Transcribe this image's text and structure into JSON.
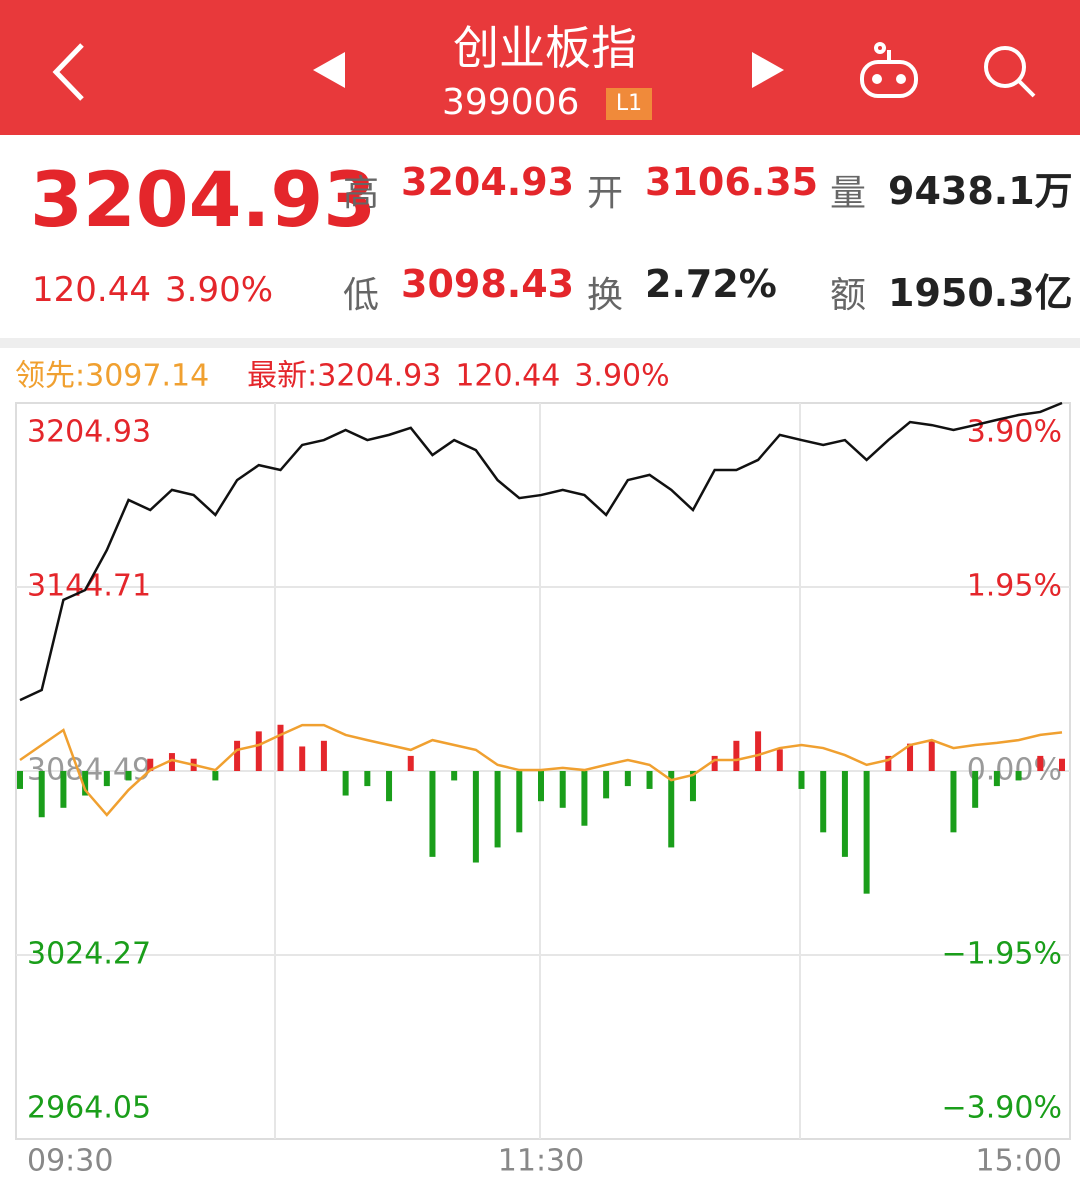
{
  "header": {
    "title": "创业板指",
    "code": "399006",
    "level": "L1"
  },
  "quote": {
    "price": "3204.93",
    "change": "120.44",
    "change_pct": "3.90%",
    "stats": [
      {
        "label": "高",
        "value": "3204.93",
        "color": "#e4262b"
      },
      {
        "label": "开",
        "value": "3106.35",
        "color": "#e4262b"
      },
      {
        "label": "量",
        "value": "9438.1万",
        "color": "#222222"
      },
      {
        "label": "低",
        "value": "3098.43",
        "color": "#e4262b"
      },
      {
        "label": "换",
        "value": "2.72%",
        "color": "#222222"
      },
      {
        "label": "额",
        "value": "1950.3亿",
        "color": "#222222"
      }
    ]
  },
  "chart_data": {
    "type": "line",
    "categories": [
      "09:30",
      null,
      null,
      null,
      null,
      null,
      null,
      null,
      null,
      null,
      null,
      null,
      null,
      null,
      null,
      null,
      null,
      null,
      null,
      null,
      null,
      null,
      null,
      null,
      "11:30",
      null,
      null,
      null,
      null,
      null,
      null,
      null,
      null,
      null,
      null,
      null,
      null,
      null,
      null,
      null,
      null,
      null,
      null,
      null,
      null,
      null,
      null,
      null,
      "15:00"
    ],
    "latest_change": "120.44",
    "latest_change_pct": "3.90%",
    "series": [
      {
        "name": "最新:3204.93",
        "type": "line",
        "color": "#111111",
        "legend_color": "#e4262b",
        "values": [
          3107.7,
          3111.0,
          3140.5,
          3143.7,
          3156.8,
          3173.2,
          3169.9,
          3176.5,
          3174.8,
          3168.3,
          3179.7,
          3184.6,
          3183.0,
          3191.2,
          3192.8,
          3196.1,
          3192.8,
          3194.5,
          3196.8,
          3187.9,
          3192.8,
          3189.5,
          3179.7,
          3173.8,
          3174.8,
          3176.5,
          3174.8,
          3168.3,
          3179.7,
          3181.4,
          3176.5,
          3169.9,
          3183.0,
          3183.0,
          3186.3,
          3194.5,
          3192.8,
          3191.2,
          3192.8,
          3186.3,
          3192.8,
          3198.7,
          3197.7,
          3196.1,
          3197.7,
          3199.4,
          3201.0,
          3202.0,
          3204.93
        ]
      },
      {
        "name": "领先:3097.14",
        "type": "line",
        "color": "#f0a030",
        "legend_color": "#f0a030",
        "values": [
          3088.1,
          3093.0,
          3097.9,
          3078.3,
          3070.1,
          3078.3,
          3084.8,
          3088.1,
          3086.5,
          3084.8,
          3091.4,
          3093.0,
          3096.3,
          3099.5,
          3099.5,
          3096.3,
          3094.6,
          3093.0,
          3091.4,
          3094.6,
          3093.0,
          3091.4,
          3086.5,
          3084.8,
          3084.8,
          3085.5,
          3084.8,
          3086.5,
          3088.1,
          3086.5,
          3081.5,
          3083.2,
          3088.1,
          3088.1,
          3089.7,
          3092.0,
          3093.0,
          3092.0,
          3089.7,
          3086.5,
          3088.1,
          3093.0,
          3094.6,
          3092.0,
          3093.0,
          3093.7,
          3094.6,
          3096.3,
          3097.14
        ]
      },
      {
        "type": "bar",
        "axis": "y2",
        "values": [
          -0.19,
          -0.49,
          -0.39,
          -0.26,
          -0.16,
          -0.1,
          0.13,
          0.19,
          0.13,
          -0.1,
          0.32,
          0.42,
          0.49,
          0.26,
          0.32,
          -0.26,
          -0.16,
          -0.32,
          0.16,
          -0.91,
          -0.1,
          -0.97,
          -0.81,
          -0.65,
          -0.32,
          -0.39,
          -0.58,
          -0.29,
          -0.16,
          -0.19,
          -0.81,
          -0.32,
          0.16,
          0.32,
          0.42,
          0.23,
          -0.19,
          -0.65,
          -0.91,
          -1.3,
          0.16,
          0.29,
          0.32,
          -0.65,
          -0.39,
          -0.16,
          -0.1,
          0.16,
          0.13
        ]
      }
    ],
    "up_color": "#e4262b",
    "down_color": "#1a9e1a",
    "flat_color": "#9a9a9a",
    "ylim": [
      2964.05,
      3204.93
    ],
    "yticks": [
      3204.93,
      3144.71,
      3084.49,
      3024.27,
      2964.05
    ],
    "y2lim": [
      -3.9,
      3.9
    ],
    "y2ticks": [
      {
        "value": 3.9,
        "label": "3.90%"
      },
      {
        "value": 1.95,
        "label": "1.95%"
      },
      {
        "value": 0,
        "label": "0.00%"
      },
      {
        "value": -1.95,
        "label": "−1.95%"
      },
      {
        "value": -3.9,
        "label": "−3.90%"
      }
    ],
    "grid": true
  }
}
